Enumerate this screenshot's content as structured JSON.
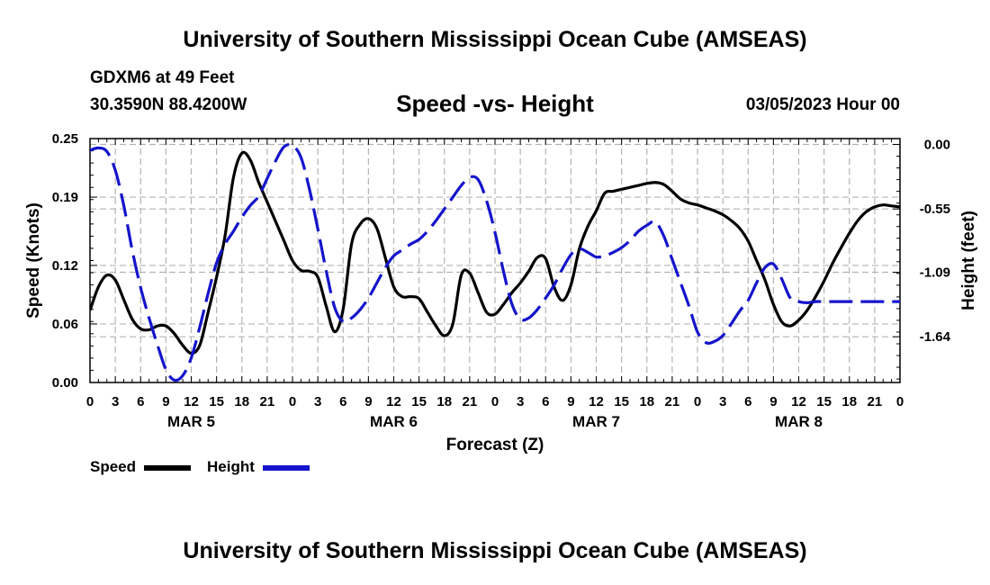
{
  "header": {
    "title": "University of Southern Mississippi Ocean Cube (AMSEAS)",
    "station": "GDXM6 at 49 Feet",
    "coords": "30.3590N  88.4200W",
    "chart_title": "Speed -vs- Height",
    "datetime": "03/05/2023 Hour 00"
  },
  "footer": {
    "title": "University of Southern Mississippi Ocean Cube (AMSEAS)"
  },
  "legend": {
    "speed_label": "Speed",
    "height_label": "Height"
  },
  "colors": {
    "speed": "#000000",
    "height": "#1414cc",
    "grid": "#b4b4b4"
  },
  "chart_data": {
    "type": "line",
    "title": "Speed -vs- Height",
    "xlabel": "Forecast (Z)",
    "ylabel": "Speed (Knots)",
    "y2label": "Height (feet)",
    "xlim": [
      0,
      96
    ],
    "ylim": [
      0,
      0.25
    ],
    "y2lim": [
      0.05,
      -2.03
    ],
    "x_tick_labels": [
      "0",
      "3",
      "6",
      "9",
      "12",
      "15",
      "18",
      "21",
      "0",
      "3",
      "6",
      "9",
      "12",
      "15",
      "18",
      "21",
      "0",
      "3",
      "6",
      "9",
      "12",
      "15",
      "18",
      "21",
      "0",
      "3",
      "6",
      "9",
      "12",
      "15",
      "18",
      "21",
      "0"
    ],
    "day_labels": [
      "MAR 5",
      "MAR 6",
      "MAR 7",
      "MAR 8"
    ],
    "y_ticks": [
      0.0,
      0.06,
      0.12,
      0.19,
      0.25
    ],
    "y_tick_labels": [
      "0.00",
      "0.06",
      "0.12",
      "0.19",
      "0.25"
    ],
    "y2_ticks": [
      0.0,
      -0.55,
      -1.09,
      -1.64
    ],
    "y2_tick_labels": [
      "0.00",
      "-0.55",
      "-1.09",
      "-1.64"
    ],
    "grid": true,
    "legend_position": "bottom-left",
    "series": [
      {
        "name": "Speed",
        "axis": "left",
        "style": "solid",
        "x": [
          0,
          1,
          2,
          3,
          4,
          5,
          6,
          7,
          8,
          9,
          10,
          11,
          12,
          13,
          14,
          15,
          16,
          17,
          18,
          19,
          20,
          21,
          22,
          23,
          24,
          25,
          26,
          27,
          28,
          29,
          30,
          31,
          32,
          33,
          34,
          35,
          36,
          37,
          38,
          39,
          40,
          41,
          42,
          43,
          44,
          45,
          46,
          47,
          48,
          49,
          50,
          51,
          52,
          53,
          54,
          55,
          56,
          57,
          58,
          59,
          60,
          61,
          62,
          63,
          64,
          65,
          66,
          67,
          68,
          69,
          70,
          71,
          72,
          73,
          74,
          75,
          76,
          77,
          78,
          79,
          80,
          81,
          82,
          83,
          84,
          85,
          86,
          87,
          88,
          89,
          90,
          91,
          92,
          93,
          94,
          95,
          96
        ],
        "values": [
          0.074,
          0.098,
          0.11,
          0.105,
          0.085,
          0.065,
          0.055,
          0.054,
          0.058,
          0.058,
          0.05,
          0.038,
          0.03,
          0.038,
          0.072,
          0.108,
          0.15,
          0.21,
          0.235,
          0.228,
          0.205,
          0.185,
          0.165,
          0.145,
          0.125,
          0.115,
          0.114,
          0.108,
          0.078,
          0.052,
          0.075,
          0.142,
          0.162,
          0.168,
          0.158,
          0.128,
          0.098,
          0.088,
          0.088,
          0.086,
          0.072,
          0.058,
          0.048,
          0.06,
          0.11,
          0.112,
          0.092,
          0.072,
          0.07,
          0.08,
          0.092,
          0.102,
          0.114,
          0.128,
          0.127,
          0.098,
          0.084,
          0.1,
          0.137,
          0.16,
          0.176,
          0.194,
          0.196,
          0.198,
          0.2,
          0.202,
          0.204,
          0.205,
          0.203,
          0.196,
          0.188,
          0.184,
          0.182,
          0.179,
          0.176,
          0.172,
          0.166,
          0.158,
          0.145,
          0.125,
          0.105,
          0.08,
          0.062,
          0.058,
          0.064,
          0.074,
          0.088,
          0.104,
          0.122,
          0.138,
          0.153,
          0.166,
          0.175,
          0.18,
          0.182,
          0.181,
          0.18
        ]
      },
      {
        "name": "Height",
        "axis": "right",
        "style": "dashed",
        "x": [
          0,
          1,
          2,
          3,
          4,
          5,
          6,
          7,
          8,
          9,
          10,
          11,
          12,
          13,
          14,
          15,
          16,
          17,
          18,
          19,
          20,
          21,
          22,
          23,
          24,
          25,
          26,
          27,
          28,
          29,
          30,
          31,
          32,
          33,
          34,
          35,
          36,
          37,
          38,
          39,
          40,
          41,
          42,
          43,
          44,
          45,
          46,
          47,
          48,
          49,
          50,
          51,
          52,
          53,
          54,
          55,
          56,
          57,
          58,
          59,
          60,
          61,
          62,
          63,
          64,
          65,
          66,
          67,
          68,
          69,
          70,
          71,
          72,
          73,
          74,
          75,
          76,
          77,
          78,
          79,
          80,
          81,
          82,
          83,
          84,
          85,
          86,
          87,
          88,
          89,
          90,
          91,
          92,
          93,
          94,
          95,
          96
        ],
        "values": [
          -0.05,
          -0.03,
          -0.06,
          -0.22,
          -0.52,
          -0.9,
          -1.22,
          -1.48,
          -1.71,
          -1.92,
          -2.01,
          -1.97,
          -1.82,
          -1.56,
          -1.27,
          -1.01,
          -0.85,
          -0.74,
          -0.62,
          -0.52,
          -0.44,
          -0.29,
          -0.14,
          -0.02,
          -0.01,
          -0.11,
          -0.38,
          -0.72,
          -1.08,
          -1.39,
          -1.51,
          -1.48,
          -1.41,
          -1.31,
          -1.18,
          -1.05,
          -0.95,
          -0.9,
          -0.85,
          -0.81,
          -0.74,
          -0.65,
          -0.55,
          -0.45,
          -0.35,
          -0.28,
          -0.3,
          -0.48,
          -0.75,
          -1.08,
          -1.36,
          -1.49,
          -1.48,
          -1.41,
          -1.31,
          -1.2,
          -1.06,
          -0.94,
          -0.89,
          -0.92,
          -0.96,
          -0.95,
          -0.92,
          -0.88,
          -0.82,
          -0.74,
          -0.69,
          -0.66,
          -0.78,
          -0.98,
          -1.18,
          -1.38,
          -1.6,
          -1.69,
          -1.68,
          -1.63,
          -1.53,
          -1.42,
          -1.33,
          -1.18,
          -1.05,
          -1.02,
          -1.15,
          -1.31,
          -1.34,
          -1.35,
          -1.34,
          -1.34,
          -1.34,
          -1.34,
          -1.34,
          -1.34,
          -1.34,
          -1.34,
          -1.34,
          -1.34,
          -1.34
        ]
      }
    ]
  }
}
